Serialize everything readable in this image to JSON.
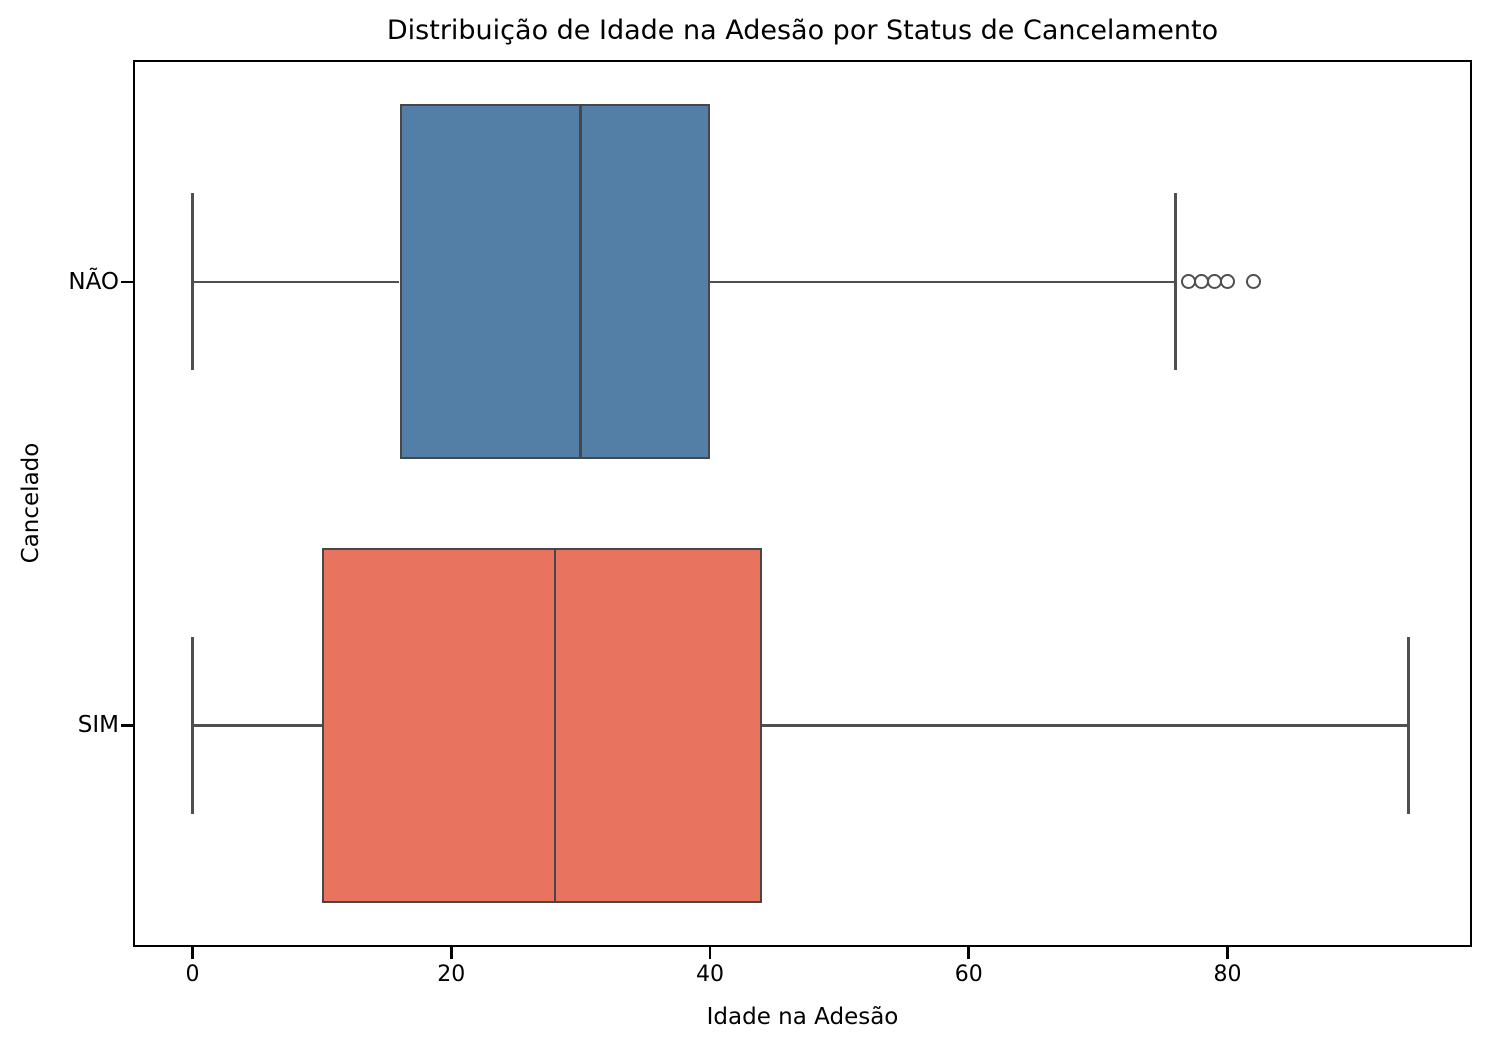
{
  "chart_data": {
    "type": "boxplot",
    "orientation": "horizontal",
    "title": "Distribuição de Idade na Adesão por Status de Cancelamento",
    "xlabel": "Idade na Adesão",
    "ylabel": "Cancelado",
    "xlim": [
      -4.6,
      98.9
    ],
    "x_ticks": [
      0,
      20,
      40,
      60,
      80
    ],
    "grid": false,
    "box_width_units": 0.8,
    "cap_width_units": 0.4,
    "edge_color": "#474747",
    "whisker_color": "#4f4f4f",
    "frame_color": "#000000",
    "series": [
      {
        "category": "NÃO",
        "color": "#537FA6",
        "whisker_low": 0,
        "q1": 16,
        "median": 30,
        "q3": 40,
        "whisker_high": 76,
        "outliers": [
          77,
          78,
          79,
          80,
          82
        ]
      },
      {
        "category": "SIM",
        "color": "#E8735F",
        "whisker_low": 0,
        "q1": 10,
        "median": 28,
        "q3": 44,
        "whisker_high": 94,
        "outliers": []
      }
    ]
  }
}
